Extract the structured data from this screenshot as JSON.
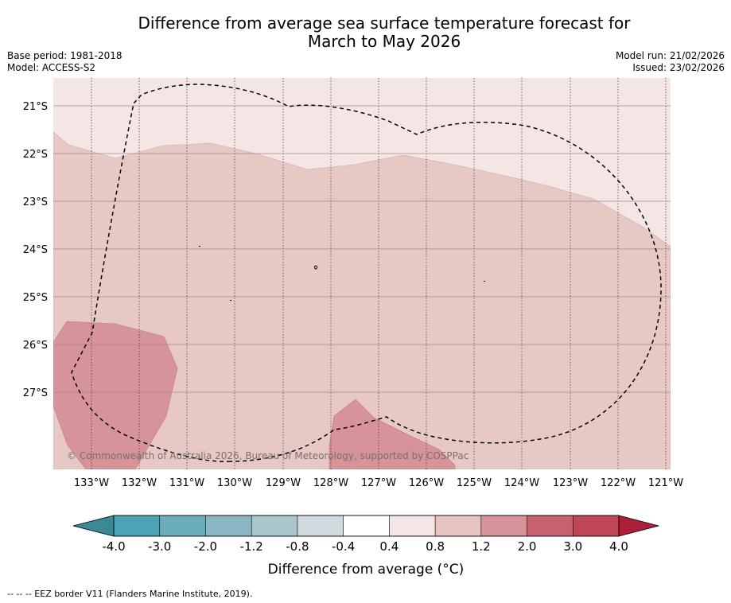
{
  "title": {
    "line1": "Difference from average sea surface temperature forecast for",
    "line2": "March to May 2026"
  },
  "meta": {
    "base_period": "Base period: 1981-2018",
    "model": "Model: ACCESS-S2",
    "model_run": "Model run: 21/02/2026",
    "issued": "Issued: 23/02/2026"
  },
  "map": {
    "lat_labels": [
      "21°S",
      "22°S",
      "23°S",
      "24°S",
      "25°S",
      "26°S",
      "27°S"
    ],
    "lon_labels": [
      "133°W",
      "132°W",
      "131°W",
      "130°W",
      "129°W",
      "128°W",
      "127°W",
      "126°W",
      "125°W",
      "124°W",
      "123°W",
      "122°W",
      "121°W"
    ],
    "copyright": "© Commonwealth of Australia 2026, Bureau of Meteorology, supported by COSPPac",
    "colors": {
      "band_04_08": "#f5e6e6",
      "band_08_12": "#e8c8c4",
      "band_12_20": "#d6939a"
    }
  },
  "colorbar": {
    "tick_labels": [
      "-4.0",
      "-3.0",
      "-2.0",
      "-1.2",
      "-0.8",
      "-0.4",
      "0.4",
      "0.8",
      "1.2",
      "2.0",
      "3.0",
      "4.0"
    ],
    "colors": [
      "#4ba3b5",
      "#6cadbc",
      "#8bb7c3",
      "#a8c6cc",
      "#d0d9dd",
      "#ffffff",
      "#f5e6e6",
      "#e8c4c1",
      "#d6939a",
      "#c9626e",
      "#c04555"
    ],
    "under_color": "#3b8996",
    "over_color": "#ad1f3b",
    "label": "Difference from average (°C)"
  },
  "footer": "--  --  -- EEZ border V11 (Flanders Marine Institute, 2019)."
}
